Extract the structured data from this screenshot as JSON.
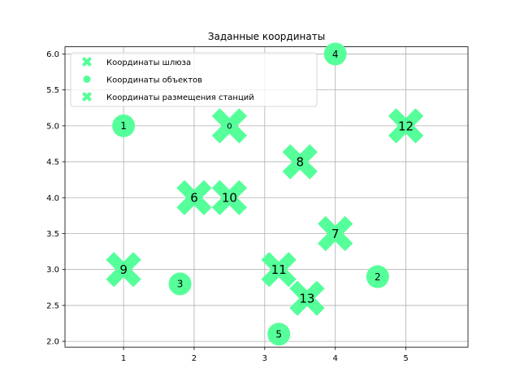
{
  "chart_data": {
    "type": "scatter",
    "title": "Заданные координаты",
    "xlabel": "",
    "ylabel": "",
    "xlim": [
      0.17,
      5.88
    ],
    "ylim": [
      1.92,
      6.1
    ],
    "xticks": [
      1,
      2,
      3,
      4,
      5
    ],
    "yticks": [
      2.0,
      2.5,
      3.0,
      3.5,
      4.0,
      4.5,
      5.0,
      5.5,
      6.0
    ],
    "grid": true,
    "legend_position": "top-left",
    "color": "#55ff99",
    "series": [
      {
        "name": "Координаты шлюза",
        "marker": "x-big",
        "points": [
          {
            "x": 2.5,
            "y": 5.0,
            "label": "0"
          }
        ]
      },
      {
        "name": "Координаты объектов",
        "marker": "circle",
        "points": [
          {
            "x": 1.0,
            "y": 5.0,
            "label": "1"
          },
          {
            "x": 4.6,
            "y": 2.9,
            "label": "2"
          },
          {
            "x": 1.8,
            "y": 2.8,
            "label": "3"
          },
          {
            "x": 4.0,
            "y": 6.0,
            "label": "4"
          },
          {
            "x": 3.2,
            "y": 2.1,
            "label": "5"
          }
        ]
      },
      {
        "name": "Координаты размещения станций",
        "marker": "x-big",
        "points": [
          {
            "x": 2.0,
            "y": 4.0,
            "label": "6"
          },
          {
            "x": 4.0,
            "y": 3.5,
            "label": "7"
          },
          {
            "x": 3.5,
            "y": 4.5,
            "label": "8"
          },
          {
            "x": 1.0,
            "y": 3.0,
            "label": "9"
          },
          {
            "x": 2.5,
            "y": 4.0,
            "label": "10"
          },
          {
            "x": 3.2,
            "y": 3.0,
            "label": "11"
          },
          {
            "x": 5.0,
            "y": 5.0,
            "label": "12"
          },
          {
            "x": 3.6,
            "y": 2.6,
            "label": "13"
          }
        ]
      }
    ]
  }
}
